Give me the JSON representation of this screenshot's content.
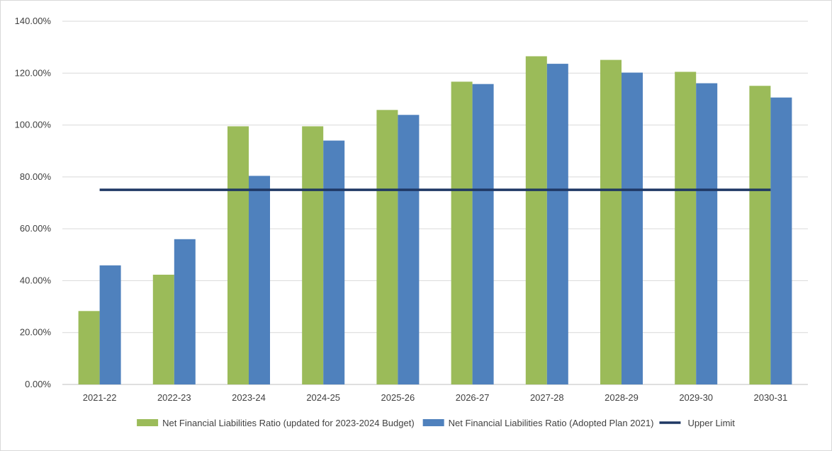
{
  "chart_data": {
    "type": "bar",
    "title": "",
    "xlabel": "",
    "ylabel": "",
    "categories": [
      "2021-22",
      "2022-23",
      "2023-24",
      "2024-25",
      "2025-26",
      "2026-27",
      "2027-28",
      "2028-29",
      "2029-30",
      "2030-31"
    ],
    "series": [
      {
        "name": "Net Financial Liabilities Ratio (updated for 2023-2024 Budget)",
        "type": "bar",
        "color": "#9bbb59",
        "values": [
          28.3,
          42.3,
          99.5,
          99.5,
          105.8,
          116.7,
          126.5,
          125.1,
          120.5,
          115.1
        ]
      },
      {
        "name": "Net Financial Liabilities Ratio (Adopted Plan 2021)",
        "type": "bar",
        "color": "#4f81bd",
        "values": [
          45.9,
          56.0,
          80.4,
          94.0,
          103.9,
          115.8,
          123.6,
          120.2,
          116.1,
          110.6
        ]
      },
      {
        "name": "Upper Limit",
        "type": "line",
        "color": "#1f3864",
        "values": [
          75,
          75,
          75,
          75,
          75,
          75,
          75,
          75,
          75,
          75
        ]
      }
    ],
    "ylim": [
      0,
      140
    ],
    "y_ticks": [
      "0.00%",
      "20.00%",
      "40.00%",
      "60.00%",
      "80.00%",
      "100.00%",
      "120.00%",
      "140.00%"
    ],
    "grid": true,
    "legend_position": "bottom"
  }
}
